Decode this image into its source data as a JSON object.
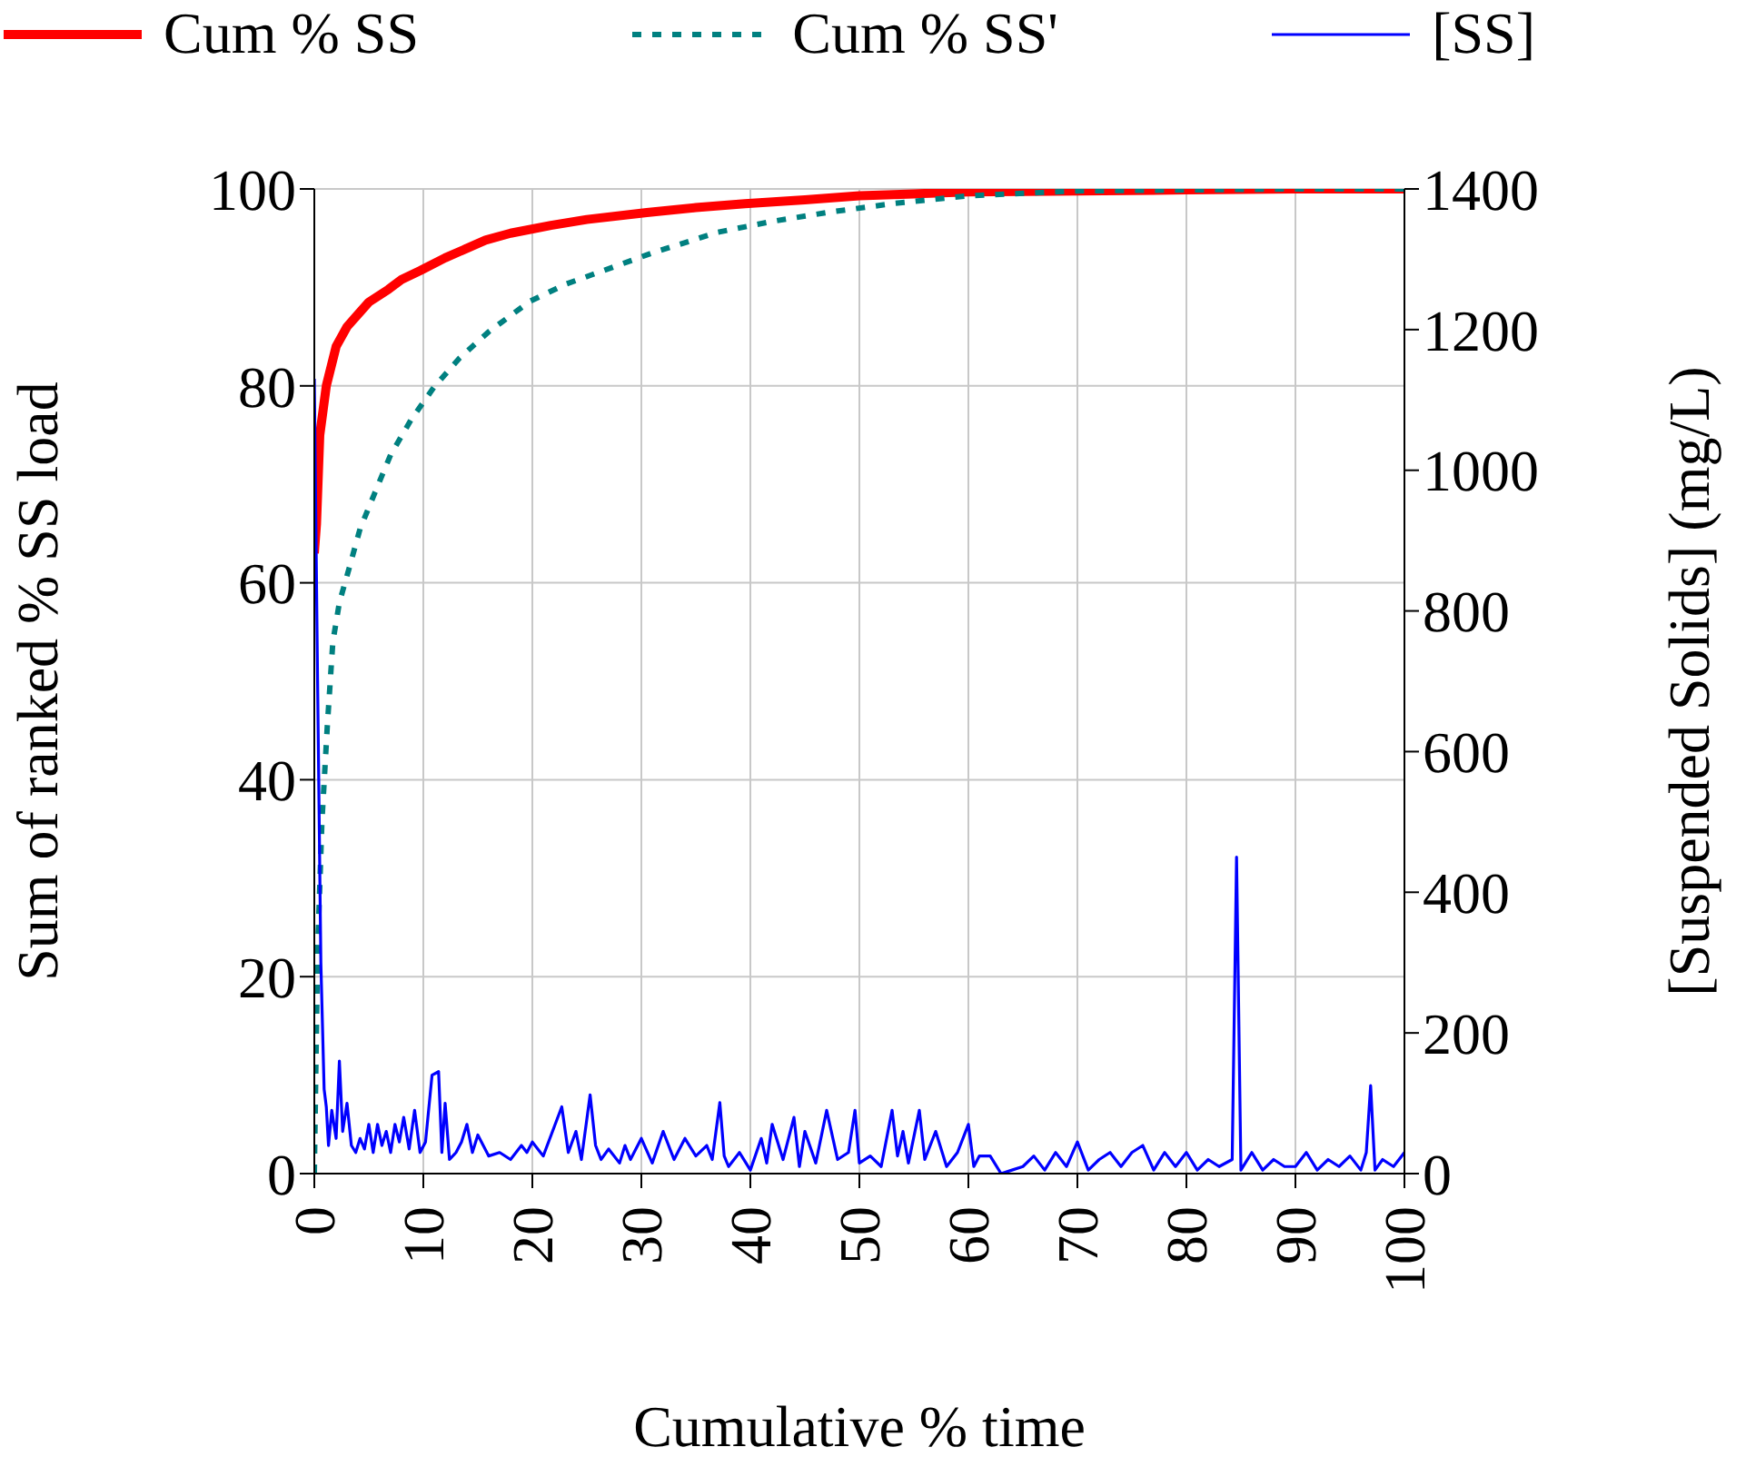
{
  "chart_data": {
    "type": "line",
    "xlabel": "Cumulative % time",
    "ylabel": "Sum of ranked % SS load",
    "y2label": "[Suspended Solids] (mg/L)",
    "xlim": [
      0,
      100
    ],
    "xticks": [
      0,
      10,
      20,
      30,
      40,
      50,
      60,
      70,
      80,
      90,
      100
    ],
    "ylim": [
      0,
      100
    ],
    "yticks": [
      0,
      20,
      40,
      60,
      80,
      100
    ],
    "y2lim": [
      0,
      1400
    ],
    "y2ticks": [
      0,
      200,
      400,
      600,
      800,
      1000,
      1200,
      1400
    ],
    "grid": true,
    "legend": "top",
    "marker": "none",
    "series": [
      {
        "name": "Cum % SS",
        "color": "#ff0000",
        "line_style": "solid",
        "x": [
          0,
          0.2,
          0.5,
          1.1,
          2,
          3,
          3.8,
          5,
          6.8,
          8,
          9.7,
          12,
          15.7,
          18,
          21.7,
          25,
          30.5,
          35,
          39.5,
          45,
          50,
          55,
          60,
          70,
          80,
          90,
          100
        ],
        "values": [
          63,
          66,
          75,
          80,
          84,
          86,
          87,
          88.5,
          89.8,
          90.8,
          91.7,
          93,
          94.8,
          95.5,
          96.3,
          96.9,
          97.6,
          98.1,
          98.5,
          98.9,
          99.3,
          99.5,
          99.7,
          99.8,
          99.9,
          100,
          100
        ]
      },
      {
        "name": "Cum % SS'",
        "color": "#008080",
        "line_style": "dotted",
        "x": [
          0,
          0.3,
          0.7,
          1.2,
          1.7,
          2.3,
          3.2,
          4.2,
          5.5,
          7,
          8.9,
          11,
          13.3,
          16,
          19.8,
          23,
          26,
          31,
          37,
          42,
          47,
          53,
          60,
          70,
          80,
          90,
          100
        ],
        "values": [
          0,
          22.5,
          35.8,
          45.6,
          54,
          58,
          61.5,
          65.5,
          69,
          73,
          76.6,
          79.9,
          82.8,
          85.5,
          88.6,
          90.3,
          91.5,
          93.5,
          95.6,
          96.7,
          97.6,
          98.5,
          99.3,
          99.8,
          99.9,
          100,
          100
        ]
      },
      {
        "name": "[SS]",
        "color": "#0000ff",
        "line_style": "solid",
        "axis": "y2",
        "x": [
          0,
          0.3,
          0.6,
          0.9,
          1.1,
          1.3,
          1.6,
          2,
          2.3,
          2.6,
          3,
          3.4,
          3.8,
          4.2,
          4.6,
          5,
          5.4,
          5.8,
          6.2,
          6.6,
          7,
          7.4,
          7.8,
          8.2,
          8.7,
          9.2,
          9.7,
          10.2,
          10.8,
          11.4,
          11.7,
          12,
          12.4,
          13,
          13.5,
          14,
          14.5,
          15,
          16,
          17,
          18,
          19,
          19.5,
          20,
          21,
          22.7,
          23.3,
          24,
          24.5,
          25.3,
          25.8,
          26.3,
          27,
          28,
          28.5,
          29,
          30,
          31,
          32,
          33,
          34,
          35,
          36,
          36.5,
          37.2,
          37.6,
          38,
          39,
          40,
          41,
          41.5,
          42,
          43,
          44,
          44.5,
          45,
          46,
          47,
          48,
          49,
          49.6,
          50,
          51,
          52,
          53,
          53.5,
          54,
          54.5,
          55.5,
          56,
          57,
          58,
          59,
          60,
          60.5,
          61,
          62,
          63,
          64,
          65,
          66,
          67,
          68,
          69,
          70,
          71,
          72,
          73,
          74,
          75,
          76,
          77,
          78,
          79,
          80,
          81,
          82,
          83,
          84.2,
          84.6,
          85,
          86,
          87,
          88,
          89,
          90,
          91,
          92,
          93,
          94,
          95,
          96,
          96.5,
          96.9,
          97.3,
          98,
          99,
          100
        ],
        "values": [
          1130,
          700,
          300,
          120,
          95,
          40,
          90,
          50,
          160,
          60,
          100,
          40,
          30,
          50,
          35,
          70,
          30,
          70,
          40,
          60,
          30,
          70,
          45,
          80,
          35,
          90,
          30,
          45,
          140,
          145,
          30,
          100,
          20,
          30,
          45,
          70,
          30,
          55,
          25,
          30,
          20,
          40,
          30,
          45,
          25,
          95,
          30,
          60,
          20,
          112,
          40,
          20,
          35,
          15,
          40,
          20,
          50,
          15,
          60,
          20,
          50,
          25,
          40,
          20,
          101,
          25,
          10,
          30,
          5,
          50,
          15,
          70,
          20,
          80,
          10,
          60,
          15,
          90,
          20,
          30,
          90,
          15,
          25,
          10,
          90,
          25,
          60,
          15,
          90,
          20,
          60,
          10,
          30,
          70,
          10,
          25,
          25,
          0,
          5,
          10,
          25,
          5,
          30,
          10,
          45,
          5,
          20,
          30,
          10,
          30,
          40,
          5,
          30,
          10,
          30,
          5,
          20,
          10,
          20,
          450,
          5,
          30,
          5,
          20,
          10,
          10,
          30,
          5,
          20,
          10,
          25,
          5,
          30,
          125,
          5,
          20,
          10,
          30
        ]
      }
    ]
  }
}
